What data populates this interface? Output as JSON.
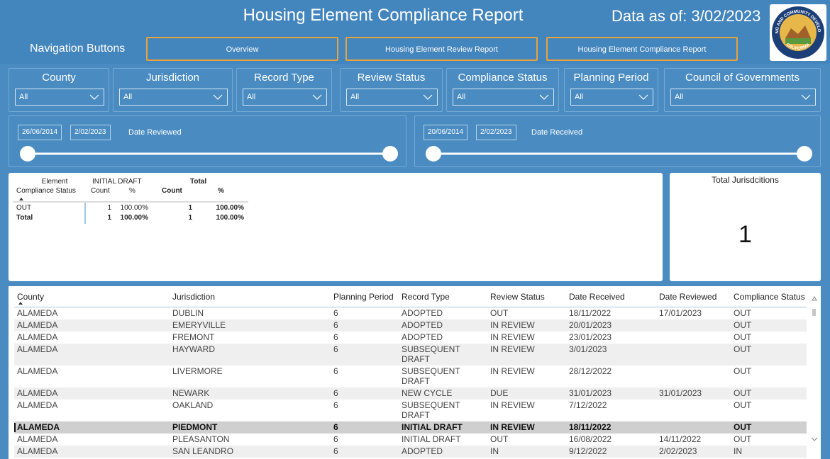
{
  "header": {
    "title": "Housing Element Compliance Report",
    "data_as_of": "Data as of:  3/02/2023",
    "logo": {
      "top": "HOUSING AND COMMUNITY DEVELOPMENT",
      "bottom": "CALIFORNIA"
    }
  },
  "nav": {
    "label": "Navigation Buttons",
    "buttons": [
      "Overview",
      "Housing Element Review Report",
      "Housing Element Compliance Report"
    ]
  },
  "filters": [
    {
      "label": "County",
      "value": "All"
    },
    {
      "label": "Jurisdiction",
      "value": "All"
    },
    {
      "label": "Record Type",
      "value": "All"
    },
    {
      "label": "Review Status",
      "value": "All"
    },
    {
      "label": "Compliance Status",
      "value": "All"
    },
    {
      "label": "Planning Period",
      "value": "All"
    },
    {
      "label": "Council of Governments",
      "value": "All"
    }
  ],
  "date_sliders": [
    {
      "start": "26/06/2014",
      "end": "2/02/2023",
      "label": "Date Reviewed"
    },
    {
      "start": "20/06/2014",
      "end": "2/02/2023",
      "label": "Date Received"
    }
  ],
  "matrix": {
    "row_header": [
      "Element",
      "Compliance Status"
    ],
    "groups": [
      "INITIAL DRAFT",
      "Total"
    ],
    "sub_headers": [
      "Count",
      "%",
      "Count",
      "%"
    ],
    "rows": [
      [
        "OUT",
        "1",
        "100.00%",
        "1",
        "100.00%"
      ],
      [
        "Total",
        "1",
        "100.00%",
        "1",
        "100.00%"
      ]
    ]
  },
  "card": {
    "title": "Total Jurisdcitions",
    "value": "1"
  },
  "table": {
    "columns": [
      "County",
      "Jurisdiction",
      "Planning Period",
      "Record Type",
      "Review Status",
      "Date Received",
      "Date Reviewed",
      "Compliance Status"
    ],
    "rows": [
      [
        "ALAMEDA",
        "DUBLIN",
        6,
        "ADOPTED",
        "OUT",
        "18/11/2022",
        "17/01/2023",
        "OUT"
      ],
      [
        "ALAMEDA",
        "EMERYVILLE",
        6,
        "ADOPTED",
        "IN REVIEW",
        "20/01/2023",
        null,
        "OUT"
      ],
      [
        "ALAMEDA",
        "FREMONT",
        6,
        "ADOPTED",
        "IN REVIEW",
        "23/01/2023",
        null,
        "OUT"
      ],
      [
        "ALAMEDA",
        "HAYWARD",
        6,
        "SUBSEQUENT DRAFT",
        "IN REVIEW",
        "3/01/2023",
        null,
        "OUT"
      ],
      [
        "ALAMEDA",
        "LIVERMORE",
        6,
        "SUBSEQUENT DRAFT",
        "IN REVIEW",
        "28/12/2022",
        null,
        "OUT"
      ],
      [
        "ALAMEDA",
        "NEWARK",
        6,
        "NEW CYCLE",
        "DUE",
        "31/01/2023",
        "31/01/2023",
        "OUT"
      ],
      [
        "ALAMEDA",
        "OAKLAND",
        6,
        "SUBSEQUENT DRAFT",
        "IN REVIEW",
        "7/12/2022",
        null,
        "OUT"
      ],
      [
        "ALAMEDA",
        "PIEDMONT",
        6,
        "INITIAL DRAFT",
        "IN REVIEW",
        "18/11/2022",
        null,
        "OUT"
      ],
      [
        "ALAMEDA",
        "PLEASANTON",
        6,
        "INITIAL DRAFT",
        "OUT",
        "16/08/2022",
        "14/11/2022",
        "OUT"
      ],
      [
        "ALAMEDA",
        "SAN LEANDRO",
        6,
        "ADOPTED",
        "IN",
        "9/12/2022",
        "2/02/2023",
        "IN"
      ]
    ]
  }
}
